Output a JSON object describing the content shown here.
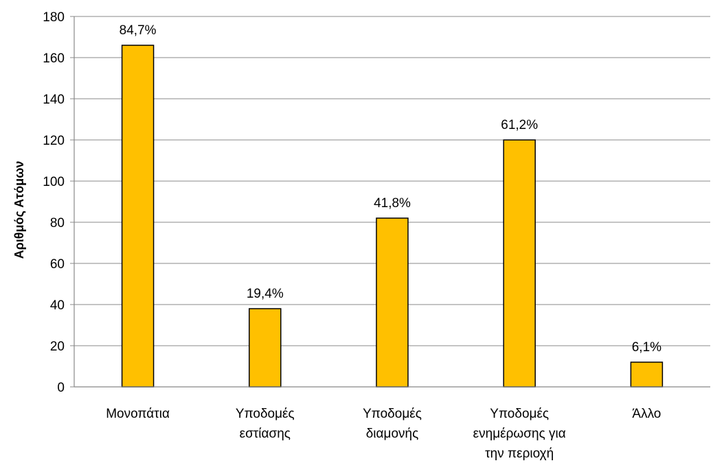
{
  "chart_data": {
    "type": "bar",
    "categories": [
      [
        "Μονοπάτια"
      ],
      [
        "Υποδομές",
        "εστίασης"
      ],
      [
        "Υποδομές",
        "διαμονής"
      ],
      [
        "Υποδομές",
        "ενημέρωσης για",
        "την περιοχή"
      ],
      [
        "Άλλο"
      ]
    ],
    "values": [
      166,
      38,
      82,
      120,
      12
    ],
    "data_labels": [
      "84,7%",
      "19,4%",
      "41,8%",
      "61,2%",
      "6,1%"
    ],
    "title": "",
    "xlabel": "",
    "ylabel": "Αριθμός Ατόμων",
    "ylim": [
      0,
      180
    ],
    "yticks": [
      0,
      20,
      40,
      60,
      80,
      100,
      120,
      140,
      160,
      180
    ],
    "grid": true,
    "legend": "none",
    "colors": {
      "bar_fill": "#FFC000",
      "bar_stroke": "#000000",
      "grid": "#888888"
    }
  }
}
